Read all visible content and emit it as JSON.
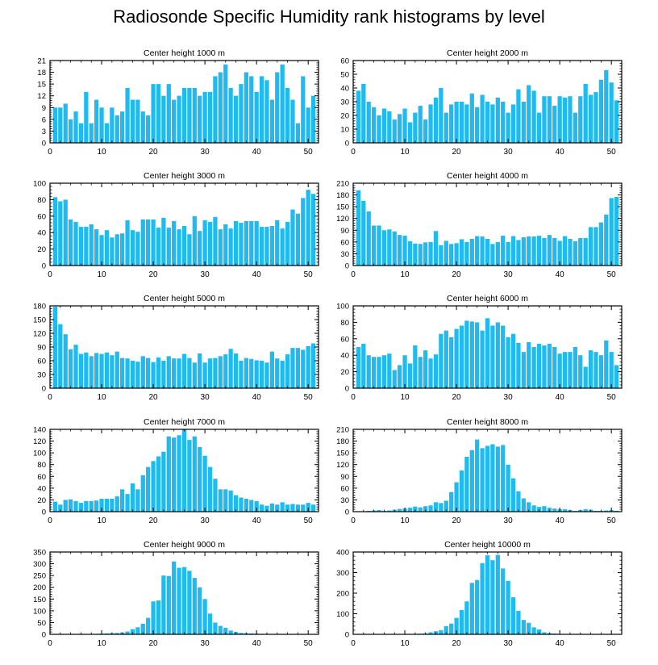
{
  "title": "Radiosonde Specific Humidity rank histograms by level",
  "bar_color": "#1ebaf0",
  "chart_data": [
    {
      "type": "bar",
      "title": "Center height 1000 m",
      "xlabel": "",
      "ylabel": "",
      "xlim": [
        0,
        52
      ],
      "xticks": [
        0,
        10,
        20,
        30,
        40,
        50
      ],
      "ylim": [
        0,
        21
      ],
      "yticks": [
        0,
        3,
        6,
        9,
        12,
        15,
        18,
        21
      ],
      "x": [
        1,
        2,
        3,
        4,
        5,
        6,
        7,
        8,
        9,
        10,
        11,
        12,
        13,
        14,
        15,
        16,
        17,
        18,
        19,
        20,
        21,
        22,
        23,
        24,
        25,
        26,
        27,
        28,
        29,
        30,
        31,
        32,
        33,
        34,
        35,
        36,
        37,
        38,
        39,
        40,
        41,
        42,
        43,
        44,
        45,
        46,
        47,
        48,
        49,
        50,
        51
      ],
      "values": [
        9,
        9,
        10,
        6,
        8,
        5,
        13,
        5,
        11,
        9,
        5,
        9,
        7,
        8,
        14,
        11,
        11,
        8,
        7,
        15,
        15,
        12,
        15,
        11,
        12,
        14,
        14,
        14,
        12,
        13,
        13,
        17,
        18,
        20,
        14,
        12,
        15,
        18,
        17,
        13,
        17,
        16,
        11,
        18,
        20,
        14,
        11,
        5,
        17,
        9,
        12
      ]
    },
    {
      "type": "bar",
      "title": "Center height 2000 m",
      "xlabel": "",
      "ylabel": "",
      "xlim": [
        0,
        52
      ],
      "xticks": [
        0,
        10,
        20,
        30,
        40,
        50
      ],
      "ylim": [
        0,
        60
      ],
      "yticks": [
        0,
        10,
        20,
        30,
        40,
        50,
        60
      ],
      "x": [
        1,
        2,
        3,
        4,
        5,
        6,
        7,
        8,
        9,
        10,
        11,
        12,
        13,
        14,
        15,
        16,
        17,
        18,
        19,
        20,
        21,
        22,
        23,
        24,
        25,
        26,
        27,
        28,
        29,
        30,
        31,
        32,
        33,
        34,
        35,
        36,
        37,
        38,
        39,
        40,
        41,
        42,
        43,
        44,
        45,
        46,
        47,
        48,
        49,
        50,
        51
      ],
      "values": [
        38,
        43,
        30,
        26,
        20,
        25,
        23,
        17,
        21,
        25,
        15,
        22,
        27,
        17,
        28,
        33,
        40,
        22,
        28,
        30,
        30,
        28,
        36,
        26,
        35,
        30,
        28,
        33,
        30,
        22,
        28,
        39,
        30,
        42,
        38,
        22,
        34,
        34,
        27,
        34,
        33,
        34,
        22,
        34,
        43,
        35,
        37,
        46,
        53,
        44,
        31
      ]
    },
    {
      "type": "bar",
      "title": "Center height 3000 m",
      "xlabel": "",
      "ylabel": "",
      "xlim": [
        0,
        52
      ],
      "xticks": [
        0,
        10,
        20,
        30,
        40,
        50
      ],
      "ylim": [
        0,
        100
      ],
      "yticks": [
        0,
        20,
        40,
        60,
        80,
        100
      ],
      "x": [
        1,
        2,
        3,
        4,
        5,
        6,
        7,
        8,
        9,
        10,
        11,
        12,
        13,
        14,
        15,
        16,
        17,
        18,
        19,
        20,
        21,
        22,
        23,
        24,
        25,
        26,
        27,
        28,
        29,
        30,
        31,
        32,
        33,
        34,
        35,
        36,
        37,
        38,
        39,
        40,
        41,
        42,
        43,
        44,
        45,
        46,
        47,
        48,
        49,
        50,
        51
      ],
      "values": [
        83,
        78,
        80,
        56,
        53,
        47,
        47,
        50,
        44,
        37,
        43,
        34,
        38,
        39,
        55,
        43,
        41,
        56,
        56,
        56,
        46,
        58,
        46,
        54,
        44,
        48,
        38,
        60,
        42,
        55,
        53,
        59,
        44,
        50,
        45,
        54,
        52,
        54,
        54,
        54,
        47,
        47,
        48,
        55,
        45,
        53,
        68,
        63,
        82,
        92,
        87
      ]
    },
    {
      "type": "bar",
      "title": "Center height 4000 m",
      "xlabel": "",
      "ylabel": "",
      "xlim": [
        0,
        52
      ],
      "xticks": [
        0,
        10,
        20,
        30,
        40,
        50
      ],
      "ylim": [
        0,
        210
      ],
      "yticks": [
        0,
        30,
        60,
        90,
        120,
        150,
        180,
        210
      ],
      "x": [
        1,
        2,
        3,
        4,
        5,
        6,
        7,
        8,
        9,
        10,
        11,
        12,
        13,
        14,
        15,
        16,
        17,
        18,
        19,
        20,
        21,
        22,
        23,
        24,
        25,
        26,
        27,
        28,
        29,
        30,
        31,
        32,
        33,
        34,
        35,
        36,
        37,
        38,
        39,
        40,
        41,
        42,
        43,
        44,
        45,
        46,
        47,
        48,
        49,
        50,
        51
      ],
      "values": [
        192,
        165,
        138,
        102,
        102,
        90,
        92,
        87,
        78,
        76,
        62,
        56,
        55,
        59,
        60,
        88,
        52,
        63,
        55,
        57,
        67,
        60,
        68,
        75,
        74,
        68,
        55,
        60,
        76,
        60,
        75,
        65,
        72,
        74,
        74,
        76,
        70,
        78,
        70,
        63,
        75,
        68,
        62,
        70,
        70,
        98,
        98,
        110,
        130,
        172,
        175
      ]
    },
    {
      "type": "bar",
      "title": "Center height 5000 m",
      "xlabel": "",
      "ylabel": "",
      "xlim": [
        0,
        52
      ],
      "xticks": [
        0,
        10,
        20,
        30,
        40,
        50
      ],
      "ylim": [
        0,
        180
      ],
      "yticks": [
        0,
        30,
        60,
        90,
        120,
        150,
        180
      ],
      "x": [
        1,
        2,
        3,
        4,
        5,
        6,
        7,
        8,
        9,
        10,
        11,
        12,
        13,
        14,
        15,
        16,
        17,
        18,
        19,
        20,
        21,
        22,
        23,
        24,
        25,
        26,
        27,
        28,
        29,
        30,
        31,
        32,
        33,
        34,
        35,
        36,
        37,
        38,
        39,
        40,
        41,
        42,
        43,
        44,
        45,
        46,
        47,
        48,
        49,
        50,
        51
      ],
      "values": [
        178,
        140,
        118,
        85,
        95,
        75,
        78,
        70,
        77,
        75,
        78,
        72,
        80,
        66,
        65,
        60,
        58,
        70,
        66,
        57,
        67,
        60,
        70,
        65,
        65,
        75,
        66,
        56,
        76,
        56,
        65,
        66,
        70,
        74,
        86,
        76,
        60,
        66,
        64,
        61,
        60,
        56,
        80,
        65,
        60,
        74,
        88,
        88,
        84,
        92,
        98
      ]
    },
    {
      "type": "bar",
      "title": "Center height 6000 m",
      "xlabel": "",
      "ylabel": "",
      "xlim": [
        0,
        52
      ],
      "xticks": [
        0,
        10,
        20,
        30,
        40,
        50
      ],
      "ylim": [
        0,
        100
      ],
      "yticks": [
        0,
        20,
        40,
        60,
        80,
        100
      ],
      "x": [
        1,
        2,
        3,
        4,
        5,
        6,
        7,
        8,
        9,
        10,
        11,
        12,
        13,
        14,
        15,
        16,
        17,
        18,
        19,
        20,
        21,
        22,
        23,
        24,
        25,
        26,
        27,
        28,
        29,
        30,
        31,
        32,
        33,
        34,
        35,
        36,
        37,
        38,
        39,
        40,
        41,
        42,
        43,
        44,
        45,
        46,
        47,
        48,
        49,
        50,
        51
      ],
      "values": [
        50,
        54,
        40,
        38,
        38,
        40,
        42,
        22,
        28,
        40,
        30,
        52,
        38,
        46,
        36,
        41,
        66,
        70,
        62,
        72,
        76,
        82,
        81,
        80,
        70,
        85,
        76,
        80,
        76,
        62,
        66,
        55,
        44,
        56,
        50,
        54,
        52,
        54,
        50,
        42,
        44,
        44,
        50,
        40,
        26,
        46,
        44,
        40,
        58,
        44,
        28
      ]
    },
    {
      "type": "bar",
      "title": "Center height 7000 m",
      "xlabel": "",
      "ylabel": "",
      "xlim": [
        0,
        52
      ],
      "xticks": [
        0,
        10,
        20,
        30,
        40,
        50
      ],
      "ylim": [
        0,
        140
      ],
      "yticks": [
        0,
        20,
        40,
        60,
        80,
        100,
        120,
        140
      ],
      "x": [
        1,
        2,
        3,
        4,
        5,
        6,
        7,
        8,
        9,
        10,
        11,
        12,
        13,
        14,
        15,
        16,
        17,
        18,
        19,
        20,
        21,
        22,
        23,
        24,
        25,
        26,
        27,
        28,
        29,
        30,
        31,
        32,
        33,
        34,
        35,
        36,
        37,
        38,
        39,
        40,
        41,
        42,
        43,
        44,
        45,
        46,
        47,
        48,
        49,
        50,
        51
      ],
      "values": [
        17,
        12,
        20,
        21,
        18,
        15,
        18,
        18,
        19,
        22,
        22,
        22,
        26,
        38,
        30,
        48,
        38,
        62,
        76,
        86,
        94,
        102,
        128,
        126,
        130,
        140,
        122,
        128,
        110,
        95,
        76,
        56,
        38,
        38,
        36,
        28,
        24,
        22,
        20,
        18,
        12,
        10,
        14,
        12,
        16,
        12,
        13,
        12,
        12,
        15,
        12
      ]
    },
    {
      "type": "bar",
      "title": "Center height 8000 m",
      "xlabel": "",
      "ylabel": "",
      "xlim": [
        0,
        52
      ],
      "xticks": [
        0,
        10,
        20,
        30,
        40,
        50
      ],
      "ylim": [
        0,
        210
      ],
      "yticks": [
        0,
        30,
        60,
        90,
        120,
        150,
        180,
        210
      ],
      "x": [
        1,
        2,
        3,
        4,
        5,
        6,
        7,
        8,
        9,
        10,
        11,
        12,
        13,
        14,
        15,
        16,
        17,
        18,
        19,
        20,
        21,
        22,
        23,
        24,
        25,
        26,
        27,
        28,
        29,
        30,
        31,
        32,
        33,
        34,
        35,
        36,
        37,
        38,
        39,
        40,
        41,
        42,
        43,
        44,
        45,
        46,
        47,
        48,
        49,
        50,
        51
      ],
      "values": [
        1,
        1,
        2,
        3,
        4,
        2,
        3,
        5,
        7,
        8,
        10,
        13,
        11,
        14,
        16,
        24,
        22,
        28,
        50,
        75,
        105,
        140,
        157,
        184,
        162,
        168,
        172,
        166,
        170,
        120,
        85,
        52,
        34,
        24,
        16,
        12,
        14,
        10,
        8,
        6,
        6,
        4,
        2,
        4,
        6,
        5,
        2,
        2,
        3,
        4,
        2
      ]
    },
    {
      "type": "bar",
      "title": "Center height 9000 m",
      "xlabel": "",
      "ylabel": "",
      "xlim": [
        0,
        52
      ],
      "xticks": [
        0,
        10,
        20,
        30,
        40,
        50
      ],
      "ylim": [
        0,
        350
      ],
      "yticks": [
        0,
        50,
        100,
        150,
        200,
        250,
        300,
        350
      ],
      "x": [
        1,
        2,
        3,
        4,
        5,
        6,
        7,
        8,
        9,
        10,
        11,
        12,
        13,
        14,
        15,
        16,
        17,
        18,
        19,
        20,
        21,
        22,
        23,
        24,
        25,
        26,
        27,
        28,
        29,
        30,
        31,
        32,
        33,
        34,
        35,
        36,
        37,
        38,
        39,
        40,
        41,
        42,
        43,
        44,
        45,
        46,
        47,
        48,
        49,
        50,
        51
      ],
      "values": [
        0,
        0,
        0,
        1,
        1,
        2,
        1,
        1,
        2,
        3,
        4,
        5,
        6,
        8,
        12,
        22,
        30,
        45,
        70,
        140,
        144,
        250,
        248,
        310,
        283,
        286,
        270,
        240,
        200,
        150,
        88,
        50,
        36,
        28,
        16,
        10,
        6,
        5,
        4,
        3,
        2,
        2,
        1,
        1,
        1,
        1,
        1,
        0,
        0,
        0,
        0
      ]
    },
    {
      "type": "bar",
      "title": "Center height 10000 m",
      "xlabel": "",
      "ylabel": "",
      "xlim": [
        0,
        52
      ],
      "xticks": [
        0,
        10,
        20,
        30,
        40,
        50
      ],
      "ylim": [
        0,
        400
      ],
      "yticks": [
        0,
        100,
        200,
        300,
        400
      ],
      "x": [
        1,
        2,
        3,
        4,
        5,
        6,
        7,
        8,
        9,
        10,
        11,
        12,
        13,
        14,
        15,
        16,
        17,
        18,
        19,
        20,
        21,
        22,
        23,
        24,
        25,
        26,
        27,
        28,
        29,
        30,
        31,
        32,
        33,
        34,
        35,
        36,
        37,
        38,
        39,
        40,
        41,
        42,
        43,
        44,
        45,
        46,
        47,
        48,
        49,
        50,
        51
      ],
      "values": [
        0,
        0,
        0,
        0,
        0,
        0,
        0,
        0,
        0,
        1,
        1,
        2,
        3,
        5,
        10,
        15,
        20,
        40,
        52,
        80,
        118,
        160,
        250,
        264,
        346,
        384,
        360,
        386,
        320,
        260,
        180,
        114,
        70,
        56,
        34,
        24,
        10,
        6,
        4,
        2,
        2,
        1,
        1,
        1,
        0,
        0,
        0,
        0,
        0,
        0,
        0
      ]
    }
  ]
}
